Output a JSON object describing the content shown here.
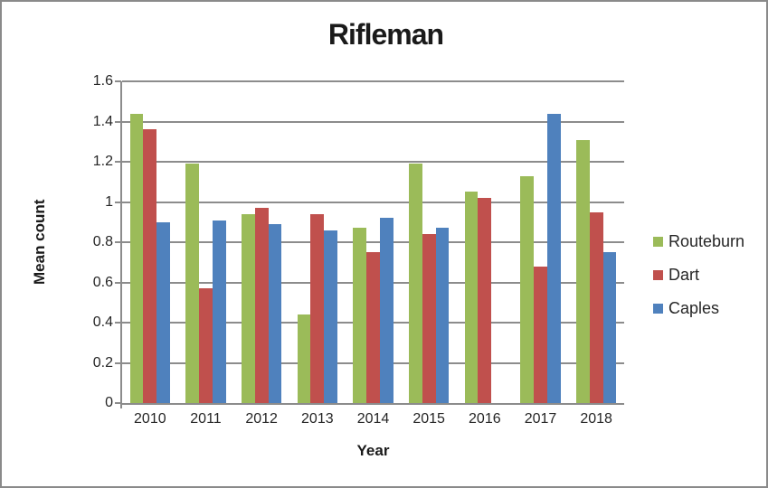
{
  "chart_data": {
    "type": "bar",
    "title": "Rifleman",
    "xlabel": "Year",
    "ylabel": "Mean count",
    "categories": [
      "2010",
      "2011",
      "2012",
      "2013",
      "2014",
      "2015",
      "2016",
      "2017",
      "2018"
    ],
    "series": [
      {
        "name": "Routeburn",
        "color": "#9BBB59",
        "values": [
          1.44,
          1.19,
          0.94,
          0.44,
          0.87,
          1.19,
          1.05,
          1.13,
          1.31
        ]
      },
      {
        "name": "Dart",
        "color": "#C0504D",
        "values": [
          1.36,
          0.57,
          0.97,
          0.94,
          0.75,
          0.84,
          1.02,
          0.68,
          0.95
        ]
      },
      {
        "name": "Caples",
        "color": "#4F81BD",
        "values": [
          0.9,
          0.91,
          0.89,
          0.86,
          0.92,
          0.87,
          null,
          1.44,
          0.75
        ]
      }
    ],
    "ylim": [
      0,
      1.6
    ],
    "ytick_step": 0.2,
    "ytick_labels": [
      "0",
      "0.2",
      "0.4",
      "0.6",
      "0.8",
      "1",
      "1.2",
      "1.4",
      "1.6"
    ],
    "grid": true,
    "legend_position": "right"
  },
  "style": {
    "background": "#FFFFFF",
    "border_color": "#8A8A8A",
    "gridline_color": "#8C8C8C",
    "axis_color": "#8C8C8C",
    "tick_text_color": "#262626",
    "title_color": "#1A1A1A"
  }
}
